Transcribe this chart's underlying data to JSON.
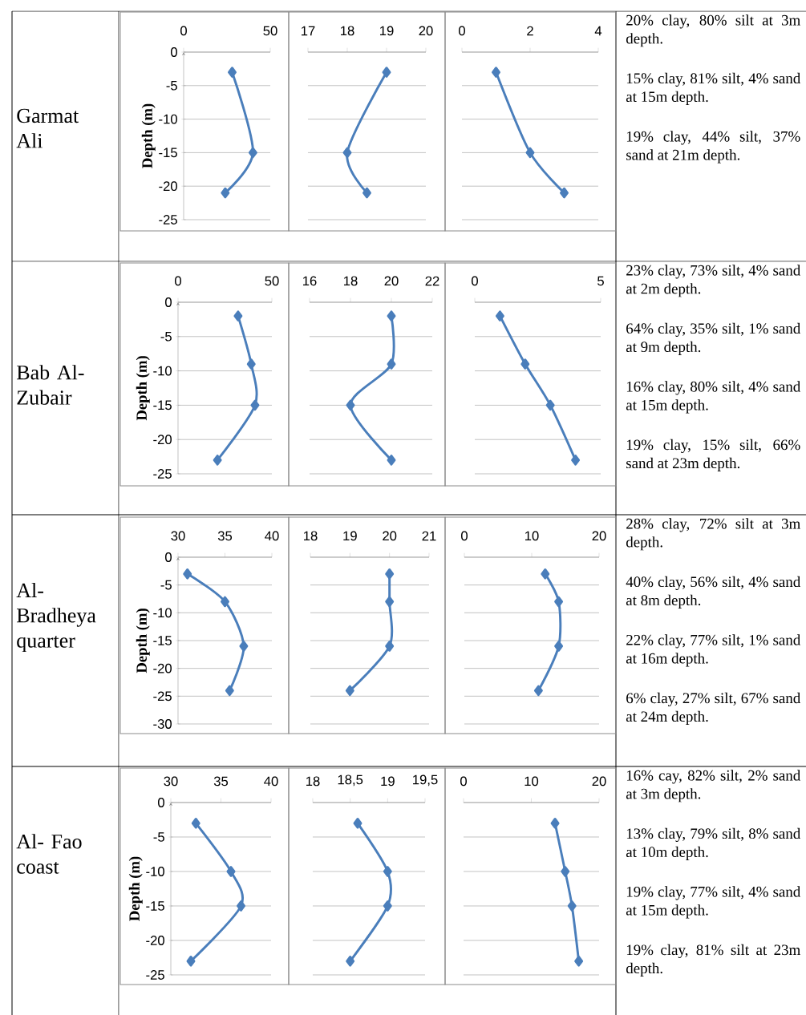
{
  "chart_data": [
    {
      "type": "other",
      "title": "Garmat Ali"
    },
    {
      "type": "line",
      "x": [
        28,
        40,
        24
      ],
      "values": [
        -3,
        -15,
        -21
      ],
      "color": "#4a7ebb",
      "marker": "diamond",
      "grid": "y",
      "ylabel": "Depth (m)",
      "xlim": [
        0,
        50
      ],
      "xticks": [
        0,
        50
      ],
      "ylim": [
        -25,
        0
      ],
      "yticks": [
        0,
        -5,
        -10,
        -15,
        -20,
        -25
      ]
    },
    {
      "type": "line",
      "x": [
        19,
        18,
        18.5
      ],
      "values": [
        -3,
        -15,
        -21
      ],
      "color": "#4a7ebb",
      "marker": "diamond",
      "grid": "y",
      "tick_labels": "x",
      "xlim": [
        17,
        20
      ],
      "xticks": [
        17,
        18,
        19,
        20
      ],
      "ylim": [
        -25,
        0
      ],
      "yticks": [
        0,
        -5,
        -10,
        -15,
        -20,
        -25
      ]
    },
    {
      "type": "line",
      "x": [
        1,
        2,
        3
      ],
      "values": [
        -3,
        -15,
        -21
      ],
      "color": "#4a7ebb",
      "marker": "diamond",
      "grid": "y",
      "tick_labels": "x",
      "xlim": [
        0,
        4
      ],
      "xticks": [
        0,
        2,
        4
      ],
      "ylim": [
        -25,
        0
      ],
      "yticks": [
        0,
        -5,
        -10,
        -15,
        -20,
        -25
      ]
    },
    {
      "type": "other",
      "annotations": [
        "20% clay, 80% silt at 3m depth.",
        "15% clay, 81% silt, 4% sand at 15m depth.",
        "19% clay, 44% silt, 37% sand at 21m depth."
      ]
    },
    {
      "type": "other",
      "title": "Bab Al-Zubair"
    },
    {
      "type": "line",
      "x": [
        32,
        39,
        41,
        21
      ],
      "values": [
        -2,
        -9,
        -15,
        -23
      ],
      "color": "#4a7ebb",
      "marker": "diamond",
      "grid": "y",
      "ylabel": "Depth (m)",
      "xlim": [
        0,
        50
      ],
      "xticks": [
        0,
        50
      ],
      "ylim": [
        -25,
        0
      ],
      "yticks": [
        0,
        -5,
        -10,
        -15,
        -20,
        -25
      ]
    },
    {
      "type": "line",
      "x": [
        20,
        20,
        18,
        20
      ],
      "values": [
        -2,
        -9,
        -15,
        -23
      ],
      "color": "#4a7ebb",
      "marker": "diamond",
      "grid": "y",
      "tick_labels": "x",
      "xlim": [
        16,
        22
      ],
      "xticks": [
        16,
        18,
        20,
        22
      ],
      "ylim": [
        -25,
        0
      ],
      "yticks": [
        0,
        -5,
        -10,
        -15,
        -20,
        -25
      ]
    },
    {
      "type": "line",
      "x": [
        1,
        2,
        3,
        4
      ],
      "values": [
        -2,
        -9,
        -15,
        -23
      ],
      "color": "#4a7ebb",
      "marker": "diamond",
      "grid": "y",
      "tick_labels": "x",
      "xlim": [
        0,
        5
      ],
      "xticks": [
        0,
        5
      ],
      "ylim": [
        -25,
        0
      ],
      "yticks": [
        0,
        -5,
        -10,
        -15,
        -20,
        -25
      ]
    },
    {
      "type": "other",
      "annotations": [
        "23% clay, 73% silt, 4% sand at 2m depth.",
        "64% clay, 35% silt, 1% sand at 9m depth.",
        "16% clay, 80% silt, 4% sand at 15m depth.",
        "19% clay, 15% silt, 66% sand at 23m depth."
      ]
    },
    {
      "type": "other",
      "title": "Al-Bradheya quarter"
    },
    {
      "type": "line",
      "x": [
        31,
        35,
        37,
        35.5
      ],
      "values": [
        -3,
        -8,
        -16,
        -24
      ],
      "color": "#4a7ebb",
      "marker": "diamond",
      "grid": "y",
      "ylabel": "Depth (m)",
      "xlim": [
        30,
        40
      ],
      "xticks": [
        30,
        35,
        40
      ],
      "ylim": [
        -30,
        0
      ],
      "yticks": [
        0,
        -5,
        -10,
        -15,
        -20,
        -25,
        -30
      ]
    },
    {
      "type": "line",
      "x": [
        20,
        20,
        20,
        19
      ],
      "values": [
        -3,
        -8,
        -16,
        -24
      ],
      "color": "#4a7ebb",
      "marker": "diamond",
      "grid": "y",
      "tick_labels": "x",
      "xlim": [
        18,
        21
      ],
      "xticks": [
        18,
        19,
        20,
        21
      ],
      "ylim": [
        -30,
        0
      ],
      "yticks": [
        0,
        -5,
        -10,
        -15,
        -20,
        -25,
        -30
      ]
    },
    {
      "type": "line",
      "x": [
        12,
        14,
        14,
        11
      ],
      "values": [
        -3,
        -8,
        -16,
        -24
      ],
      "color": "#4a7ebb",
      "marker": "diamond",
      "grid": "y",
      "tick_labels": "x",
      "xlim": [
        0,
        20
      ],
      "xticks": [
        0,
        10,
        20
      ],
      "ylim": [
        -30,
        0
      ],
      "yticks": [
        0,
        -5,
        -10,
        -15,
        -20,
        -25,
        -30
      ]
    },
    {
      "type": "other",
      "annotations": [
        "28% clay, 72% silt at 3m depth.",
        "40% clay, 56% silt, 4% sand at 8m depth.",
        "22% clay, 77% silt, 1% sand at 16m depth.",
        "6% clay, 27% silt, 67% sand at 24m depth."
      ]
    },
    {
      "type": "other",
      "title": "Al- Fao coast"
    },
    {
      "type": "line",
      "x": [
        32.5,
        36,
        37,
        32
      ],
      "values": [
        -3,
        -10,
        -15,
        -23
      ],
      "color": "#4a7ebb",
      "marker": "diamond",
      "grid": "y",
      "ylabel": "Depth (m)",
      "xlim": [
        30,
        40
      ],
      "xticks": [
        30,
        35,
        40
      ],
      "ylim": [
        -25,
        0
      ],
      "yticks": [
        0,
        -5,
        -10,
        -15,
        -20,
        -25
      ]
    },
    {
      "type": "line",
      "x": [
        18.6,
        19,
        19,
        18.5
      ],
      "values": [
        -3,
        -10,
        -15,
        -23
      ],
      "color": "#4a7ebb",
      "marker": "diamond",
      "grid": "y",
      "tick_labels": "x",
      "xlim": [
        18,
        19.5
      ],
      "xticks": [
        18,
        {
          "value": 18.5,
          "label": "18,5"
        },
        19,
        {
          "value": 19.5,
          "label": "19,5"
        }
      ],
      "ylim": [
        -25,
        0
      ],
      "yticks": [
        0,
        -5,
        -10,
        -15,
        -20,
        -25
      ]
    },
    {
      "type": "line",
      "x": [
        13.5,
        15,
        16,
        17
      ],
      "values": [
        -3,
        -10,
        -15,
        -23
      ],
      "color": "#4a7ebb",
      "marker": "diamond",
      "grid": "y",
      "tick_labels": "x",
      "xlim": [
        0,
        20
      ],
      "xticks": [
        0,
        10,
        20
      ],
      "ylim": [
        -25,
        0
      ],
      "yticks": [
        0,
        -5,
        -10,
        -15,
        -20,
        -25
      ]
    },
    {
      "type": "other",
      "annotations": [
        "16% cay, 82% silt, 2% sand at 3m depth.",
        "13% clay, 79% silt, 8% sand at 10m depth.",
        "19% clay, 77% silt, 4% sand at 15m depth.",
        "19% clay, 81% silt at 23m depth."
      ]
    }
  ]
}
